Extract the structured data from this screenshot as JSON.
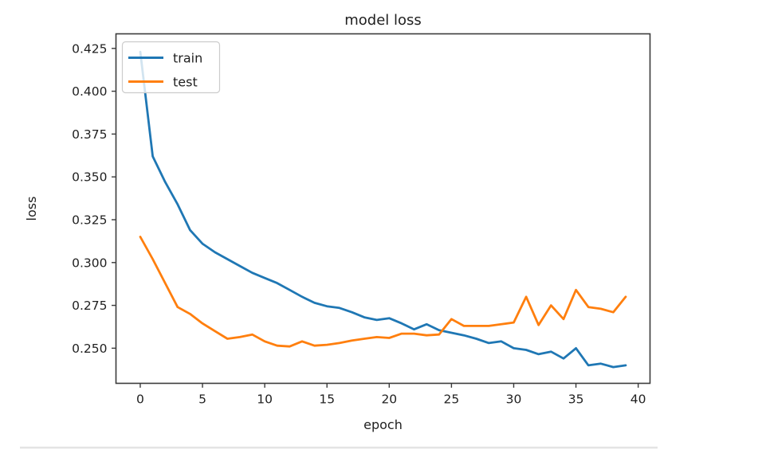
{
  "figure": {
    "background": "#ffffff",
    "text_color": "#1f1f1f",
    "spine_color": "#3b3b3b"
  },
  "chart_data": {
    "type": "line",
    "title": "model loss",
    "xlabel": "epoch",
    "ylabel": "loss",
    "xlim": [
      -1.95,
      40.95
    ],
    "ylim": [
      0.2295,
      0.4335
    ],
    "grid": false,
    "xtick_values": [
      0,
      5,
      10,
      15,
      20,
      25,
      30,
      35,
      40
    ],
    "xtick_labels": [
      "0",
      "5",
      "10",
      "15",
      "20",
      "25",
      "30",
      "35",
      "40"
    ],
    "ytick_values": [
      0.25,
      0.275,
      0.3,
      0.325,
      0.35,
      0.375,
      0.4,
      0.425
    ],
    "ytick_labels": [
      "0.250",
      "0.275",
      "0.300",
      "0.325",
      "0.350",
      "0.375",
      "0.400",
      "0.425"
    ],
    "x": [
      0,
      1,
      2,
      3,
      4,
      5,
      6,
      7,
      8,
      9,
      10,
      11,
      12,
      13,
      14,
      15,
      16,
      17,
      18,
      19,
      20,
      21,
      22,
      23,
      24,
      25,
      26,
      27,
      28,
      29,
      30,
      31,
      32,
      33,
      34,
      35,
      36,
      37,
      38,
      39
    ],
    "series": [
      {
        "name": "train",
        "color": "#1f77b4",
        "values": [
          0.423,
          0.362,
          0.347,
          0.334,
          0.319,
          0.311,
          0.306,
          0.302,
          0.298,
          0.294,
          0.291,
          0.288,
          0.284,
          0.28,
          0.2765,
          0.2745,
          0.2735,
          0.271,
          0.268,
          0.2665,
          0.2675,
          0.2645,
          0.261,
          0.264,
          0.2605,
          0.259,
          0.2575,
          0.2555,
          0.253,
          0.254,
          0.25,
          0.249,
          0.2465,
          0.248,
          0.244,
          0.25,
          0.24,
          0.241,
          0.239,
          0.24
        ]
      },
      {
        "name": "test",
        "color": "#ff7f0e",
        "values": [
          0.315,
          0.302,
          0.288,
          0.274,
          0.27,
          0.2645,
          0.26,
          0.2555,
          0.2565,
          0.258,
          0.254,
          0.2515,
          0.251,
          0.254,
          0.2515,
          0.252,
          0.253,
          0.2545,
          0.2555,
          0.2565,
          0.256,
          0.2585,
          0.2585,
          0.2575,
          0.258,
          0.267,
          0.263,
          0.263,
          0.263,
          0.264,
          0.265,
          0.28,
          0.2635,
          0.275,
          0.267,
          0.284,
          0.274,
          0.273,
          0.271,
          0.28
        ]
      }
    ],
    "legend": {
      "position": "upper left",
      "items": [
        {
          "label": "train",
          "color": "#1f77b4"
        },
        {
          "label": "test",
          "color": "#ff7f0e"
        }
      ]
    }
  }
}
